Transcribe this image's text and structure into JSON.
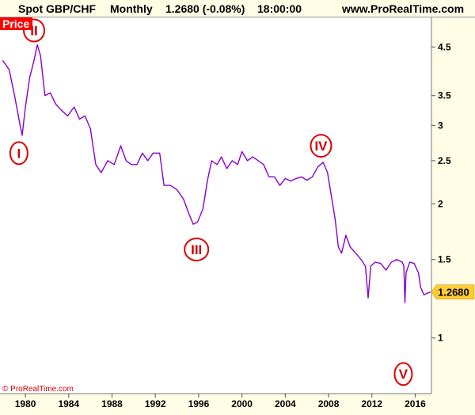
{
  "header": {
    "instrument": "Spot GBP/CHF",
    "timeframe": "Monthly",
    "quote": "1.2680 (-0.08%)",
    "time": "18:00:00",
    "site": "www.ProRealTime.com"
  },
  "footer": {
    "copyright": "© ProRealTime.com"
  },
  "chart_data": {
    "type": "line",
    "title": "",
    "panel_label": "Price",
    "y_scale": "log",
    "xlim": [
      1977.8,
      2017.5
    ],
    "ylim": [
      0.75,
      5.2
    ],
    "x_ticks": [
      1980,
      1984,
      1988,
      1992,
      1996,
      2000,
      2004,
      2008,
      2012,
      2016
    ],
    "x_tick_labels": [
      "1980",
      "1984",
      "1988",
      "1992",
      "1996",
      "2000",
      "2004",
      "2008",
      "2012",
      "2016"
    ],
    "y_ticks": [
      1,
      1.5,
      2,
      2.5,
      3,
      3.5,
      4.5
    ],
    "y_tick_labels": [
      "1",
      "1.5",
      "2",
      "2.5",
      "3",
      "3.5",
      "4.5"
    ],
    "last_value": 1.268,
    "last_value_label": "1.2680",
    "series": [
      {
        "color": "#8800cc",
        "points": [
          [
            1977.9,
            4.2
          ],
          [
            1978.5,
            4.0
          ],
          [
            1979.0,
            3.5
          ],
          [
            1979.4,
            3.1
          ],
          [
            1979.7,
            2.85
          ],
          [
            1980.0,
            3.3
          ],
          [
            1980.4,
            3.85
          ],
          [
            1980.8,
            4.2
          ],
          [
            1981.1,
            4.55
          ],
          [
            1981.4,
            4.3
          ],
          [
            1981.8,
            3.5
          ],
          [
            1982.3,
            3.55
          ],
          [
            1982.8,
            3.35
          ],
          [
            1983.3,
            3.25
          ],
          [
            1983.9,
            3.15
          ],
          [
            1984.5,
            3.3
          ],
          [
            1985.0,
            3.1
          ],
          [
            1985.5,
            3.15
          ],
          [
            1986.0,
            2.95
          ],
          [
            1986.5,
            2.45
          ],
          [
            1987.0,
            2.35
          ],
          [
            1987.6,
            2.5
          ],
          [
            1988.2,
            2.45
          ],
          [
            1988.8,
            2.7
          ],
          [
            1989.3,
            2.5
          ],
          [
            1989.8,
            2.45
          ],
          [
            1990.3,
            2.45
          ],
          [
            1990.8,
            2.6
          ],
          [
            1991.3,
            2.5
          ],
          [
            1991.8,
            2.6
          ],
          [
            1992.4,
            2.6
          ],
          [
            1992.8,
            2.2
          ],
          [
            1993.4,
            2.2
          ],
          [
            1994.0,
            2.15
          ],
          [
            1994.6,
            2.05
          ],
          [
            1995.1,
            1.9
          ],
          [
            1995.5,
            1.8
          ],
          [
            1995.9,
            1.82
          ],
          [
            1996.4,
            1.95
          ],
          [
            1996.8,
            2.25
          ],
          [
            1997.2,
            2.5
          ],
          [
            1997.7,
            2.45
          ],
          [
            1998.1,
            2.55
          ],
          [
            1998.6,
            2.4
          ],
          [
            1999.1,
            2.5
          ],
          [
            1999.6,
            2.45
          ],
          [
            2000.0,
            2.62
          ],
          [
            2000.5,
            2.5
          ],
          [
            2001.0,
            2.55
          ],
          [
            2001.5,
            2.5
          ],
          [
            2002.0,
            2.45
          ],
          [
            2002.5,
            2.3
          ],
          [
            2003.0,
            2.3
          ],
          [
            2003.5,
            2.2
          ],
          [
            2004.0,
            2.28
          ],
          [
            2004.5,
            2.25
          ],
          [
            2005.0,
            2.28
          ],
          [
            2005.5,
            2.3
          ],
          [
            2006.0,
            2.26
          ],
          [
            2006.5,
            2.3
          ],
          [
            2007.0,
            2.42
          ],
          [
            2007.5,
            2.48
          ],
          [
            2007.9,
            2.35
          ],
          [
            2008.3,
            2.05
          ],
          [
            2008.6,
            1.85
          ],
          [
            2008.9,
            1.6
          ],
          [
            2009.2,
            1.55
          ],
          [
            2009.6,
            1.7
          ],
          [
            2010.0,
            1.6
          ],
          [
            2010.5,
            1.55
          ],
          [
            2011.0,
            1.5
          ],
          [
            2011.4,
            1.45
          ],
          [
            2011.65,
            1.23
          ],
          [
            2011.9,
            1.45
          ],
          [
            2012.3,
            1.48
          ],
          [
            2012.8,
            1.47
          ],
          [
            2013.3,
            1.42
          ],
          [
            2013.8,
            1.48
          ],
          [
            2014.3,
            1.5
          ],
          [
            2014.8,
            1.48
          ],
          [
            2014.95,
            1.45
          ],
          [
            2015.05,
            1.2
          ],
          [
            2015.15,
            1.4
          ],
          [
            2015.5,
            1.48
          ],
          [
            2015.9,
            1.47
          ],
          [
            2016.3,
            1.4
          ],
          [
            2016.5,
            1.3
          ],
          [
            2016.8,
            1.25
          ],
          [
            2017.1,
            1.26
          ],
          [
            2017.4,
            1.268
          ]
        ]
      }
    ],
    "annotations": [
      {
        "label": "I",
        "x": 1979.4,
        "y": 2.6
      },
      {
        "label": "II",
        "x": 1980.8,
        "y": 4.9
      },
      {
        "label": "III",
        "x": 1995.8,
        "y": 1.58
      },
      {
        "label": "IV",
        "x": 2007.3,
        "y": 2.7
      },
      {
        "label": "V",
        "x": 2014.9,
        "y": 0.83
      }
    ]
  }
}
